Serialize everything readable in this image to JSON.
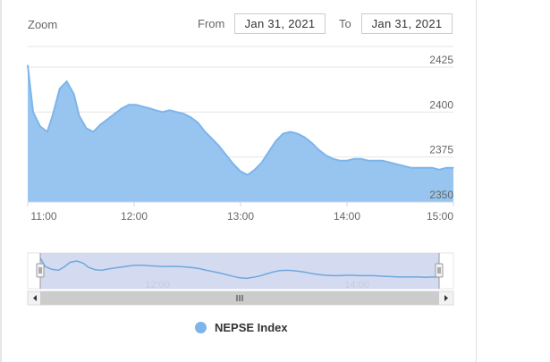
{
  "zoom": {
    "label": "Zoom"
  },
  "range": {
    "from_label": "From",
    "from_value": "Jan 31, 2021",
    "to_label": "To",
    "to_value": "Jan 31, 2021"
  },
  "colors": {
    "series_line": "#7cb5ec",
    "series_fill": "#97c5ef",
    "navigator_mask": "#cdd5ef",
    "scrollbar": "#cccccc"
  },
  "chart_data": {
    "type": "area",
    "title": "",
    "xlabel": "",
    "ylabel": "",
    "x_ticks": [
      "11:00",
      "12:00",
      "13:00",
      "14:00",
      "15:00"
    ],
    "y_ticks": [
      2425,
      2400,
      2375,
      2350
    ],
    "navigator_ticks": [
      "12:00",
      "14:00"
    ],
    "ylim": [
      2350,
      2425
    ],
    "grid": true,
    "legend_placement": "bottom",
    "series": [
      {
        "name": "NEPSE Index",
        "x": [
          "10:59",
          "11:02",
          "11:06",
          "11:10",
          "11:13",
          "11:17",
          "11:21",
          "11:25",
          "11:28",
          "11:32",
          "11:36",
          "11:40",
          "11:44",
          "11:48",
          "11:52",
          "11:56",
          "12:00",
          "12:04",
          "12:08",
          "12:11",
          "12:15",
          "12:19",
          "12:23",
          "12:27",
          "12:31",
          "12:35",
          "12:39",
          "12:43",
          "12:47",
          "12:51",
          "12:55",
          "12:59",
          "13:03",
          "13:07",
          "13:11",
          "13:15",
          "13:19",
          "13:23",
          "13:27",
          "13:31",
          "13:35",
          "13:39",
          "13:43",
          "13:47",
          "13:51",
          "13:55",
          "13:59",
          "14:03",
          "14:07",
          "14:11",
          "14:15",
          "14:19",
          "14:23",
          "14:27",
          "14:31",
          "14:35",
          "14:39",
          "14:43",
          "14:47",
          "14:51",
          "14:55",
          "14:59"
        ],
        "values": [
          2426,
          2400,
          2392,
          2389,
          2398,
          2413,
          2417,
          2410,
          2398,
          2391,
          2389,
          2393,
          2396,
          2399,
          2402,
          2404,
          2404,
          2403,
          2402,
          2401,
          2400,
          2401,
          2400,
          2399,
          2397,
          2394,
          2389,
          2385,
          2381,
          2376,
          2371,
          2367,
          2365,
          2368,
          2372,
          2378,
          2384,
          2388,
          2389,
          2388,
          2386,
          2383,
          2379,
          2376,
          2374,
          2373,
          2373,
          2374,
          2374,
          2373,
          2373,
          2373,
          2372,
          2371,
          2370,
          2369,
          2369,
          2369,
          2369,
          2368,
          2369,
          2369
        ]
      }
    ]
  }
}
